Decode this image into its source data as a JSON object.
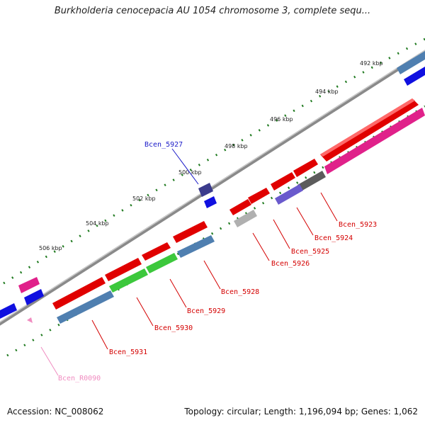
{
  "title": "Burkholderia cenocepacia AU 1054 chromosome 3, complete sequ...",
  "footer": {
    "accession": "Accession: NC_008062",
    "topology": "Topology: circular; Length: 1,196,094 bp; Genes: 1,062"
  },
  "colors": {
    "backbone": "#7a7a7a",
    "tick": "#1f7a1f",
    "label_red": "#d40000",
    "label_blue": "#1a1ac8",
    "label_pink": "#f08cc0"
  },
  "ticks": [
    "492 kbp",
    "494 kbp",
    "496 kbp",
    "498 kbp",
    "500 kbp",
    "502 kbp",
    "504 kbp",
    "506 kbp"
  ],
  "genes": [
    {
      "label": "Bcen_5923",
      "color": "red"
    },
    {
      "label": "Bcen_5924",
      "color": "red"
    },
    {
      "label": "Bcen_5925",
      "color": "red"
    },
    {
      "label": "Bcen_5926",
      "color": "red"
    },
    {
      "label": "Bcen_5927",
      "color": "blue"
    },
    {
      "label": "Bcen_5928",
      "color": "red"
    },
    {
      "label": "Bcen_5929",
      "color": "red"
    },
    {
      "label": "Bcen_5930",
      "color": "red"
    },
    {
      "label": "Bcen_5931",
      "color": "red"
    },
    {
      "label": "Bcen_R0090",
      "color": "pink"
    }
  ]
}
